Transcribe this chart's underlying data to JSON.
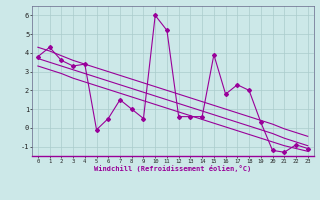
{
  "x_data": [
    0,
    1,
    2,
    3,
    4,
    5,
    6,
    7,
    8,
    9,
    10,
    11,
    12,
    13,
    14,
    15,
    16,
    17,
    18,
    19,
    20,
    21,
    22,
    23
  ],
  "y_main": [
    3.8,
    4.3,
    3.6,
    3.3,
    3.4,
    -0.1,
    0.5,
    1.5,
    1.0,
    0.5,
    6.0,
    5.2,
    0.6,
    0.6,
    0.6,
    3.9,
    1.8,
    2.3,
    2.0,
    0.3,
    -1.2,
    -1.3,
    -0.9,
    -1.1
  ],
  "y_trend1": [
    3.3,
    3.1,
    2.9,
    2.65,
    2.45,
    2.25,
    2.05,
    1.85,
    1.65,
    1.45,
    1.25,
    1.05,
    0.85,
    0.65,
    0.45,
    0.25,
    0.05,
    -0.15,
    -0.35,
    -0.55,
    -0.75,
    -0.95,
    -1.1,
    -1.25
  ],
  "y_trend2": [
    3.7,
    3.5,
    3.3,
    3.1,
    2.9,
    2.7,
    2.5,
    2.3,
    2.1,
    1.9,
    1.7,
    1.5,
    1.3,
    1.1,
    0.9,
    0.7,
    0.5,
    0.3,
    0.1,
    -0.1,
    -0.3,
    -0.55,
    -0.75,
    -0.95
  ],
  "y_trend3": [
    4.3,
    4.1,
    3.85,
    3.6,
    3.4,
    3.2,
    3.0,
    2.8,
    2.6,
    2.4,
    2.2,
    2.0,
    1.8,
    1.6,
    1.4,
    1.2,
    1.0,
    0.8,
    0.6,
    0.4,
    0.2,
    -0.05,
    -0.25,
    -0.45
  ],
  "line_color": "#990099",
  "bg_color": "#cce8e8",
  "grid_color": "#aacccc",
  "xlabel": "Windchill (Refroidissement éolien,°C)",
  "xlim_min": -0.5,
  "xlim_max": 23.5,
  "ylim_min": -1.5,
  "ylim_max": 6.5,
  "yticks": [
    -1,
    0,
    1,
    2,
    3,
    4,
    5,
    6
  ],
  "xticks": [
    0,
    1,
    2,
    3,
    4,
    5,
    6,
    7,
    8,
    9,
    10,
    11,
    12,
    13,
    14,
    15,
    16,
    17,
    18,
    19,
    20,
    21,
    22,
    23
  ],
  "marker": "D",
  "marker_size": 2.0,
  "line_width": 0.8
}
